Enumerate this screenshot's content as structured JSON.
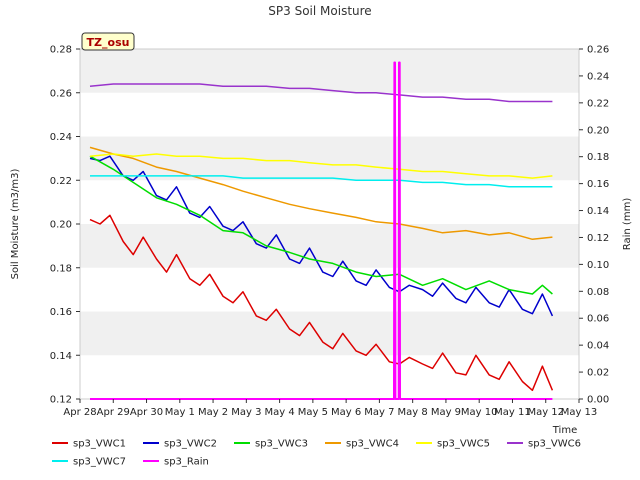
{
  "chart_data": {
    "type": "line",
    "title": "SP3 Soil Moisture",
    "xlabel": "Time",
    "ylabel": "Soil Moisture (m3/m3)",
    "y2label": "Rain (mm)",
    "ylim": [
      0.12,
      0.28
    ],
    "y2lim": [
      0.0,
      0.26
    ],
    "xlim": [
      0,
      15
    ],
    "yticks": [
      0.12,
      0.14,
      0.16,
      0.18,
      0.2,
      0.22,
      0.24,
      0.26,
      0.28
    ],
    "ytick_labels": [
      "0.12",
      "0.14",
      "0.16",
      "0.18",
      "0.20",
      "0.22",
      "0.24",
      "0.26",
      "0.28"
    ],
    "y2ticks": [
      0.0,
      0.02,
      0.04,
      0.06,
      0.08,
      0.1,
      0.12,
      0.14,
      0.16,
      0.18,
      0.2,
      0.22,
      0.24,
      0.26
    ],
    "y2tick_labels": [
      "0.00",
      "0.02",
      "0.04",
      "0.06",
      "0.08",
      "0.10",
      "0.12",
      "0.14",
      "0.16",
      "0.18",
      "0.20",
      "0.22",
      "0.24",
      "0.26"
    ],
    "xticks": [
      0,
      1,
      2,
      3,
      4,
      5,
      6,
      7,
      8,
      9,
      10,
      11,
      12,
      13,
      14,
      15
    ],
    "xtick_labels": [
      "Apr 28",
      "Apr 29",
      "Apr 30",
      "May 1",
      "May 2",
      "May 3",
      "May 4",
      "May 5",
      "May 6",
      "May 7",
      "May 8",
      "May 9",
      "May 10",
      "May 11",
      "May 12",
      "May 13"
    ],
    "annotation": "TZ_osu",
    "grid": "horizontal bands",
    "legend_position": "bottom",
    "series": [
      {
        "name": "sp3_VWC1",
        "color": "#dd0000",
        "x": [
          0.3,
          0.6,
          0.9,
          1.3,
          1.6,
          1.9,
          2.3,
          2.6,
          2.9,
          3.3,
          3.6,
          3.9,
          4.3,
          4.6,
          4.9,
          5.3,
          5.6,
          5.9,
          6.3,
          6.6,
          6.9,
          7.3,
          7.6,
          7.9,
          8.3,
          8.6,
          8.9,
          9.3,
          9.6,
          9.9,
          10.3,
          10.6,
          10.9,
          11.3,
          11.6,
          11.9,
          12.3,
          12.6,
          12.9,
          13.3,
          13.6,
          13.9,
          14.2
        ],
        "y": [
          0.202,
          0.2,
          0.204,
          0.192,
          0.186,
          0.194,
          0.184,
          0.178,
          0.186,
          0.175,
          0.172,
          0.177,
          0.167,
          0.164,
          0.169,
          0.158,
          0.156,
          0.161,
          0.152,
          0.149,
          0.155,
          0.146,
          0.143,
          0.15,
          0.142,
          0.14,
          0.145,
          0.137,
          0.136,
          0.139,
          0.136,
          0.134,
          0.141,
          0.132,
          0.131,
          0.14,
          0.131,
          0.129,
          0.137,
          0.128,
          0.124,
          0.135,
          0.124
        ]
      },
      {
        "name": "sp3_VWC2",
        "color": "#0000cc",
        "x": [
          0.3,
          0.6,
          0.9,
          1.3,
          1.6,
          1.9,
          2.3,
          2.6,
          2.9,
          3.3,
          3.6,
          3.9,
          4.3,
          4.6,
          4.9,
          5.3,
          5.6,
          5.9,
          6.3,
          6.6,
          6.9,
          7.3,
          7.6,
          7.9,
          8.3,
          8.6,
          8.9,
          9.3,
          9.6,
          9.9,
          10.3,
          10.6,
          10.9,
          11.3,
          11.6,
          11.9,
          12.3,
          12.6,
          12.9,
          13.3,
          13.6,
          13.9,
          14.2
        ],
        "y": [
          0.23,
          0.229,
          0.231,
          0.222,
          0.22,
          0.224,
          0.213,
          0.211,
          0.217,
          0.205,
          0.203,
          0.208,
          0.199,
          0.197,
          0.201,
          0.191,
          0.189,
          0.195,
          0.184,
          0.182,
          0.189,
          0.178,
          0.176,
          0.183,
          0.174,
          0.172,
          0.179,
          0.171,
          0.169,
          0.172,
          0.17,
          0.167,
          0.173,
          0.166,
          0.164,
          0.171,
          0.164,
          0.162,
          0.17,
          0.161,
          0.159,
          0.168,
          0.158
        ]
      },
      {
        "name": "sp3_VWC3",
        "color": "#00dd00",
        "x": [
          0.3,
          1.0,
          1.6,
          2.3,
          2.9,
          3.6,
          4.3,
          4.9,
          5.6,
          6.3,
          6.9,
          7.6,
          8.3,
          8.9,
          9.6,
          10.3,
          10.9,
          11.6,
          12.3,
          12.9,
          13.6,
          13.9,
          14.2
        ],
        "y": [
          0.231,
          0.225,
          0.219,
          0.212,
          0.209,
          0.204,
          0.197,
          0.196,
          0.19,
          0.187,
          0.184,
          0.182,
          0.178,
          0.176,
          0.177,
          0.172,
          0.175,
          0.17,
          0.174,
          0.17,
          0.168,
          0.172,
          0.168
        ]
      },
      {
        "name": "sp3_VWC4",
        "color": "#ee9900",
        "x": [
          0.3,
          1.0,
          1.6,
          2.3,
          2.9,
          3.6,
          4.3,
          4.9,
          5.6,
          6.3,
          6.9,
          7.6,
          8.3,
          8.9,
          9.6,
          10.3,
          10.9,
          11.6,
          12.3,
          12.9,
          13.6,
          14.2
        ],
        "y": [
          0.235,
          0.232,
          0.23,
          0.226,
          0.224,
          0.221,
          0.218,
          0.215,
          0.212,
          0.209,
          0.207,
          0.205,
          0.203,
          0.201,
          0.2,
          0.198,
          0.196,
          0.197,
          0.195,
          0.196,
          0.193,
          0.194
        ]
      },
      {
        "name": "sp3_VWC5",
        "color": "#ffff00",
        "x": [
          0.3,
          1.0,
          1.6,
          2.3,
          2.9,
          3.6,
          4.3,
          4.9,
          5.6,
          6.3,
          6.9,
          7.6,
          8.3,
          8.9,
          9.6,
          10.3,
          10.9,
          11.6,
          12.3,
          12.9,
          13.6,
          14.2
        ],
        "y": [
          0.231,
          0.232,
          0.231,
          0.232,
          0.231,
          0.231,
          0.23,
          0.23,
          0.229,
          0.229,
          0.228,
          0.227,
          0.227,
          0.226,
          0.225,
          0.224,
          0.224,
          0.223,
          0.222,
          0.222,
          0.221,
          0.222
        ]
      },
      {
        "name": "sp3_VWC6",
        "color": "#9933cc",
        "x": [
          0.3,
          1.0,
          1.6,
          2.3,
          2.9,
          3.6,
          4.3,
          4.9,
          5.6,
          6.3,
          6.9,
          7.6,
          8.3,
          8.9,
          9.6,
          10.3,
          10.9,
          11.6,
          12.3,
          12.9,
          13.6,
          14.2
        ],
        "y": [
          0.263,
          0.264,
          0.264,
          0.264,
          0.264,
          0.264,
          0.263,
          0.263,
          0.263,
          0.262,
          0.262,
          0.261,
          0.26,
          0.26,
          0.259,
          0.258,
          0.258,
          0.257,
          0.257,
          0.256,
          0.256,
          0.256
        ]
      },
      {
        "name": "sp3_VWC7",
        "color": "#00eeee",
        "x": [
          0.3,
          1.0,
          1.6,
          2.3,
          2.9,
          3.6,
          4.3,
          4.9,
          5.6,
          6.3,
          6.9,
          7.6,
          8.3,
          8.9,
          9.6,
          10.3,
          10.9,
          11.6,
          12.3,
          12.9,
          13.6,
          14.2
        ],
        "y": [
          0.222,
          0.222,
          0.222,
          0.222,
          0.222,
          0.222,
          0.222,
          0.221,
          0.221,
          0.221,
          0.221,
          0.221,
          0.22,
          0.22,
          0.22,
          0.219,
          0.219,
          0.218,
          0.218,
          0.217,
          0.217,
          0.217
        ]
      },
      {
        "name": "sp3_Rain",
        "color": "#ff00ff",
        "axis": "right",
        "x": [
          0.3,
          9.44,
          9.45,
          9.47,
          9.48,
          9.58,
          9.59,
          9.61,
          9.62,
          14.2
        ],
        "y": [
          0.0,
          0.0,
          0.25,
          0.25,
          0.0,
          0.0,
          0.25,
          0.25,
          0.0,
          0.0
        ]
      }
    ]
  }
}
